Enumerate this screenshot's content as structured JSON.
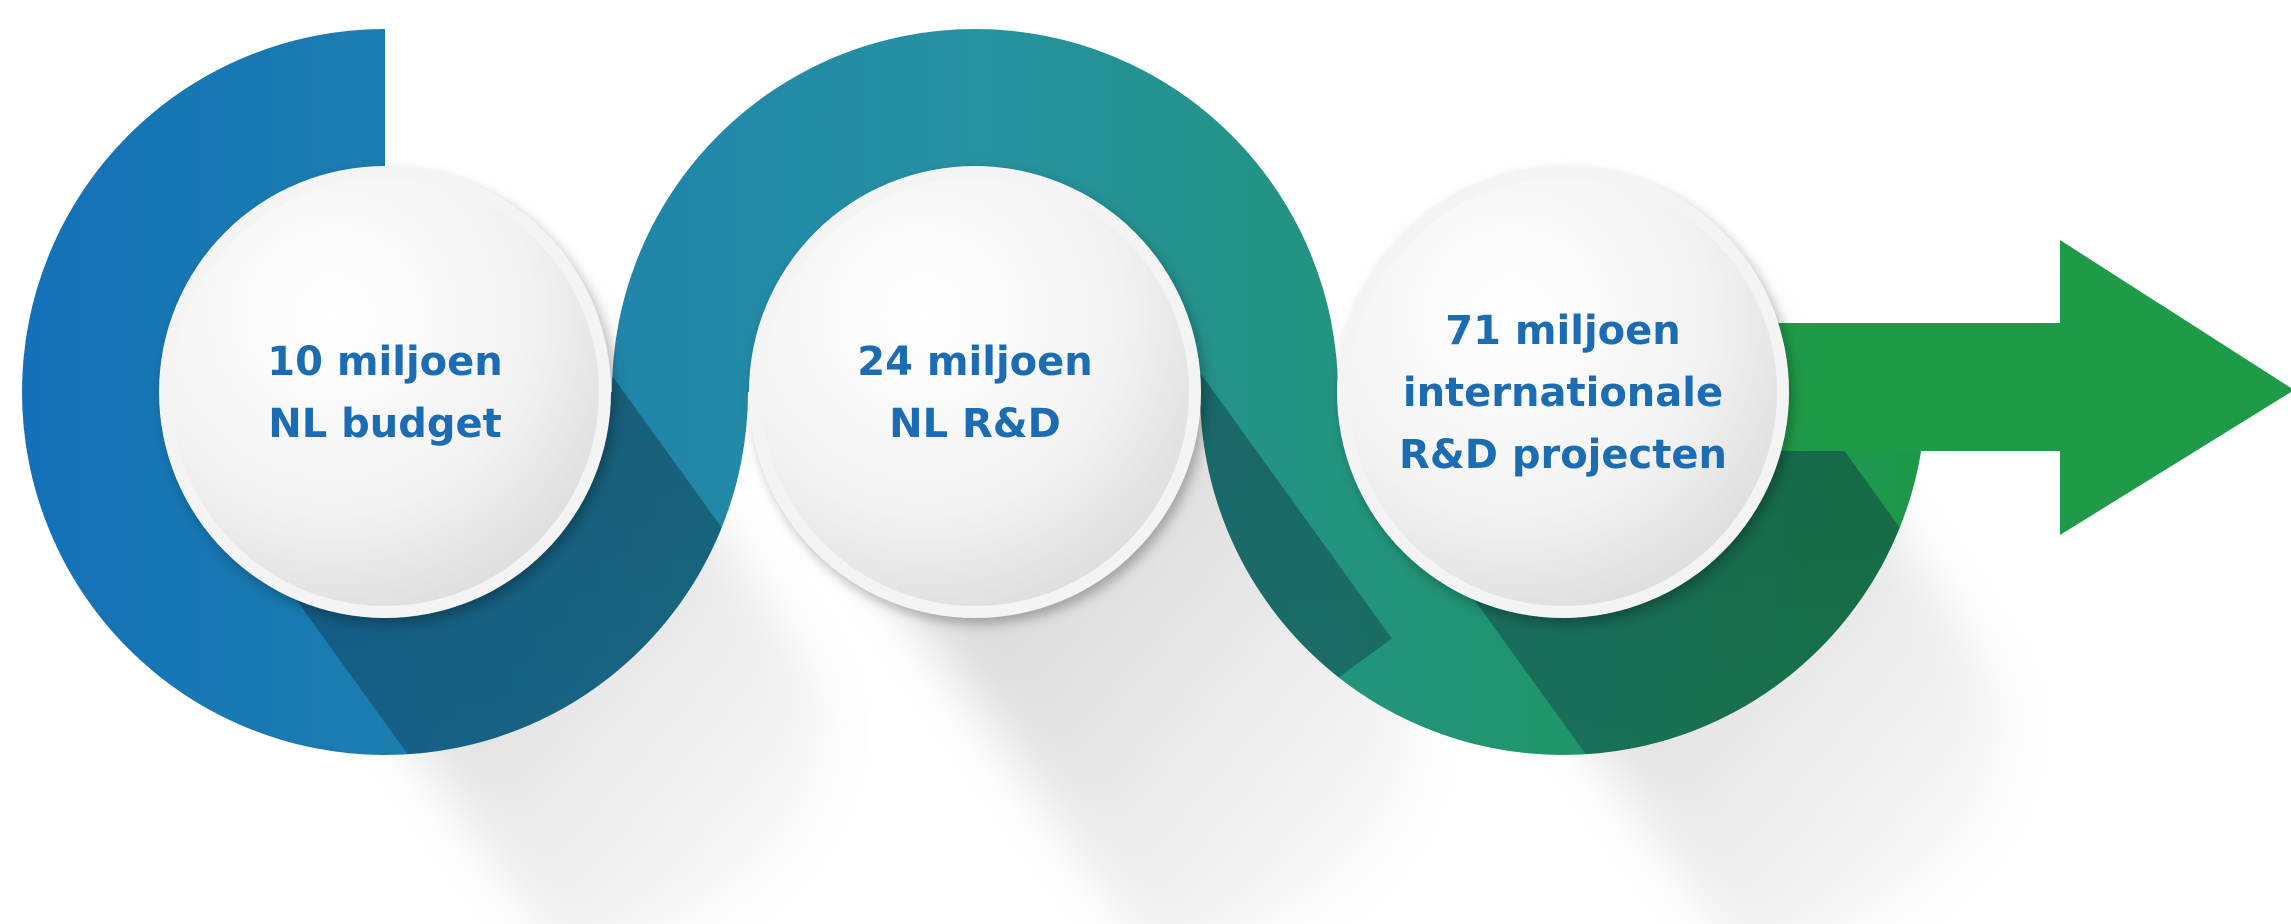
{
  "colors": {
    "background": "#ffffff",
    "gradient_start": "#1471b8",
    "gradient_mid": "#2691a1",
    "gradient_end": "#1d9849",
    "arrow": "#1f9a48",
    "text": "#1b6cb2",
    "circle_light": "#fbfbfb",
    "circle_dark": "#e3e3e3"
  },
  "steps": [
    {
      "lines": [
        "10 miljoen",
        "NL budget"
      ]
    },
    {
      "lines": [
        "24 miljoen",
        "NL R&D"
      ]
    },
    {
      "lines": [
        "71 miljoen",
        "internationale",
        "R&D projecten"
      ]
    }
  ]
}
